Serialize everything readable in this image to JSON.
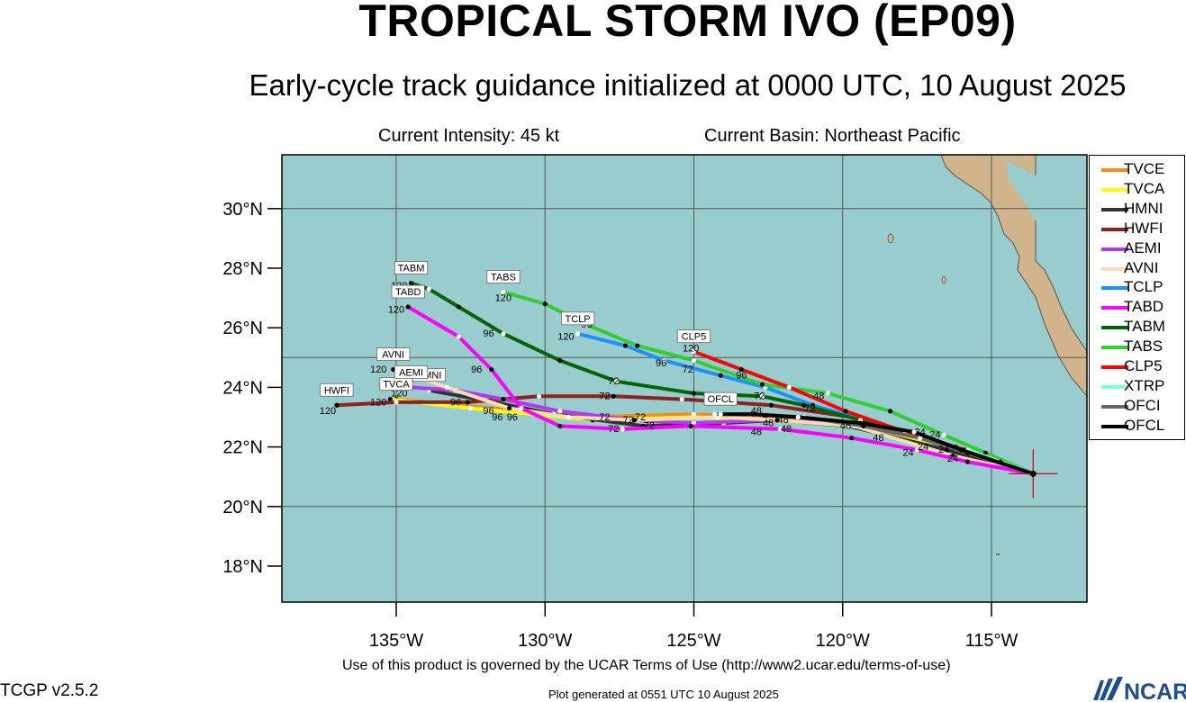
{
  "title": "TROPICAL STORM IVO (EP09)",
  "subtitle": "Early-cycle track guidance initialized at 0000 UTC, 10 August 2025",
  "intensity": "Current Intensity: 45 kt",
  "basin": "Current Basin: Northeast Pacific",
  "footer": {
    "terms": "Use of this product is governed by the UCAR Terms of Use (http://www2.ucar.edu/terms-of-use)",
    "version": "TCGP v2.5.2",
    "generated": "Plot generated at 0551 UTC   10 August 2025",
    "logo": "NCAR"
  },
  "colors": {
    "ocean": "#99cccc",
    "land": "#d2b48c"
  },
  "map": {
    "lat_ticks": [
      "18°N",
      "20°N",
      "22°N",
      "24°N",
      "26°N",
      "28°N",
      "30°N"
    ],
    "lon_ticks": [
      "135°W",
      "130°W",
      "125°W",
      "120°W",
      "115°W"
    ]
  },
  "storm_position": {
    "lon": -113.6,
    "lat": 21.1
  },
  "legend": [
    {
      "name": "TVCE",
      "color": "#f28c1c"
    },
    {
      "name": "TVCA",
      "color": "#ffff00"
    },
    {
      "name": "HMNI",
      "color": "#333333"
    },
    {
      "name": "HWFI",
      "color": "#8b2323"
    },
    {
      "name": "AEMI",
      "color": "#b23aee"
    },
    {
      "name": "AVNI",
      "color": "#f5deb3"
    },
    {
      "name": "TCLP",
      "color": "#1e90ff"
    },
    {
      "name": "TABD",
      "color": "#ff00ff"
    },
    {
      "name": "TABM",
      "color": "#006400"
    },
    {
      "name": "TABS",
      "color": "#32cd32"
    },
    {
      "name": "CLP5",
      "color": "#ff0000"
    },
    {
      "name": "XTRP",
      "color": "#7fffd4"
    },
    {
      "name": "OFCI",
      "color": "#666666"
    },
    {
      "name": "OFCL",
      "color": "#000000"
    }
  ],
  "tracks": [
    {
      "name": "TVCE",
      "color": "#f28c1c",
      "points": [
        [
          -113.6,
          21.1
        ],
        [
          -116.3,
          22.0
        ],
        [
          -119.6,
          22.8
        ],
        [
          -122.6,
          23.0
        ],
        [
          -125.0,
          23.1
        ],
        [
          -128.5,
          23.0
        ],
        [
          -132.9,
          23.4
        ],
        [
          -135.0,
          23.6
        ]
      ],
      "end_label": "TVCA"
    },
    {
      "name": "TVCA",
      "color": "#ffff00",
      "points": [
        [
          -113.6,
          21.1
        ],
        [
          -116.3,
          22.0
        ],
        [
          -119.5,
          22.7
        ],
        [
          -122.5,
          22.9
        ],
        [
          -125.0,
          23.0
        ],
        [
          -128.4,
          22.9
        ],
        [
          -132.5,
          23.3
        ],
        [
          -135.2,
          23.6
        ]
      ],
      "end_label": ""
    },
    {
      "name": "HMNI",
      "color": "#333333",
      "points": [
        [
          -113.6,
          21.1
        ],
        [
          -116.5,
          21.9
        ],
        [
          -119.8,
          22.7
        ],
        [
          -122.2,
          22.9
        ],
        [
          -124.0,
          22.8
        ],
        [
          -126.7,
          22.7
        ],
        [
          -129.7,
          23.1
        ],
        [
          -131.7,
          23.5
        ],
        [
          -133.9,
          23.9
        ]
      ],
      "end_label": "HMNI"
    },
    {
      "name": "HWFI",
      "color": "#8b2323",
      "points": [
        [
          -113.6,
          21.1
        ],
        [
          -116.7,
          22.1
        ],
        [
          -119.7,
          23.0
        ],
        [
          -122.4,
          23.4
        ],
        [
          -125.4,
          23.6
        ],
        [
          -127.7,
          23.7
        ],
        [
          -130.2,
          23.7
        ],
        [
          -132.6,
          23.5
        ],
        [
          -135.0,
          23.5
        ],
        [
          -137.0,
          23.4
        ]
      ],
      "end_label": "HWFI"
    },
    {
      "name": "AEMI",
      "color": "#b23aee",
      "points": [
        [
          -113.6,
          21.1
        ],
        [
          -116.9,
          22.2
        ],
        [
          -119.9,
          22.8
        ],
        [
          -122.5,
          22.9
        ],
        [
          -125.0,
          22.8
        ],
        [
          -127.0,
          22.9
        ],
        [
          -129.5,
          23.2
        ],
        [
          -131.4,
          23.6
        ],
        [
          -133.0,
          23.9
        ],
        [
          -134.5,
          24.0
        ]
      ],
      "end_label": "AEMI"
    },
    {
      "name": "AVNI",
      "color": "#f5deb3",
      "points": [
        [
          -113.6,
          21.1
        ],
        [
          -116.3,
          21.7
        ],
        [
          -119.6,
          22.7
        ],
        [
          -122.2,
          22.9
        ],
        [
          -124.2,
          23.0
        ],
        [
          -127.0,
          22.9
        ],
        [
          -129.2,
          23.0
        ],
        [
          -131.2,
          23.3
        ],
        [
          -133.3,
          24.0
        ],
        [
          -135.1,
          24.6
        ]
      ],
      "end_label": "AVNI"
    },
    {
      "name": "TCLP",
      "color": "#1e90ff",
      "points": [
        [
          -113.6,
          21.1
        ],
        [
          -116.2,
          22.0
        ],
        [
          -119.3,
          22.9
        ],
        [
          -121.0,
          23.4
        ],
        [
          -122.6,
          24.0
        ],
        [
          -124.1,
          24.4
        ],
        [
          -126.0,
          24.9
        ],
        [
          -127.3,
          25.4
        ],
        [
          -128.9,
          25.8
        ]
      ],
      "end_label": "TCLP"
    },
    {
      "name": "TABD",
      "color": "#ff00ff",
      "points": [
        [
          -113.6,
          21.1
        ],
        [
          -115.8,
          21.5
        ],
        [
          -117.5,
          21.9
        ],
        [
          -119.7,
          22.3
        ],
        [
          -122.1,
          22.6
        ],
        [
          -125.1,
          22.7
        ],
        [
          -127.4,
          22.6
        ],
        [
          -129.5,
          22.7
        ],
        [
          -130.8,
          23.3
        ],
        [
          -131.8,
          24.6
        ],
        [
          -132.9,
          25.7
        ],
        [
          -134.6,
          26.7
        ]
      ],
      "end_label": "TABD"
    },
    {
      "name": "TABM",
      "color": "#006400",
      "points": [
        [
          -113.6,
          21.1
        ],
        [
          -116.3,
          22.0
        ],
        [
          -119.4,
          22.9
        ],
        [
          -121.3,
          23.4
        ],
        [
          -122.7,
          23.7
        ],
        [
          -125.0,
          23.8
        ],
        [
          -127.6,
          24.2
        ],
        [
          -129.5,
          24.9
        ],
        [
          -131.4,
          25.8
        ],
        [
          -132.9,
          26.7
        ],
        [
          -133.9,
          27.3
        ],
        [
          -134.5,
          27.5
        ]
      ],
      "end_label": "TABM"
    },
    {
      "name": "TABS",
      "color": "#32cd32",
      "points": [
        [
          -113.6,
          21.1
        ],
        [
          -115.2,
          21.8
        ],
        [
          -116.6,
          22.4
        ],
        [
          -118.4,
          23.2
        ],
        [
          -120.5,
          23.8
        ],
        [
          -122.7,
          24.1
        ],
        [
          -125.0,
          24.9
        ],
        [
          -126.9,
          25.4
        ],
        [
          -128.6,
          26.1
        ],
        [
          -130.0,
          26.8
        ],
        [
          -131.4,
          27.2
        ]
      ],
      "end_label": "TABS"
    },
    {
      "name": "CLP5",
      "color": "#ff0000",
      "points": [
        [
          -113.6,
          21.1
        ],
        [
          -115.9,
          21.9
        ],
        [
          -117.9,
          22.5
        ],
        [
          -119.9,
          23.2
        ],
        [
          -121.8,
          24.0
        ],
        [
          -123.4,
          24.6
        ],
        [
          -125.0,
          25.2
        ]
      ],
      "end_label": "CLP5"
    },
    {
      "name": "XTRP",
      "color": "#7fffd4",
      "points": [
        [
          -113.6,
          21.1
        ],
        [
          -114.7,
          21.5
        ],
        [
          -115.8,
          21.9
        ]
      ],
      "end_label": ""
    },
    {
      "name": "OFCI",
      "color": "#666666",
      "points": [
        [
          -113.6,
          21.1
        ],
        [
          -115.8,
          21.8
        ],
        [
          -117.4,
          22.3
        ],
        [
          -119.3,
          22.7
        ],
        [
          -121.3,
          23.0
        ],
        [
          -123.0,
          23.1
        ],
        [
          -124.3,
          23.1
        ]
      ],
      "end_label": ""
    },
    {
      "name": "OFCL",
      "color": "#000000",
      "points": [
        [
          -113.6,
          21.1
        ],
        [
          -116.0,
          21.9
        ],
        [
          -117.6,
          22.5
        ],
        [
          -119.4,
          22.8
        ],
        [
          -121.5,
          23.0
        ],
        [
          -123.0,
          23.1
        ],
        [
          -124.1,
          23.1
        ]
      ],
      "end_label": "OFCL"
    }
  ],
  "hour_labels": [
    {
      "text": "120",
      "lon": -134.9,
      "lat": 27.3
    },
    {
      "text": "120",
      "lon": -135.0,
      "lat": 26.5
    },
    {
      "text": "120",
      "lon": -131.4,
      "lat": 26.9
    },
    {
      "text": "120",
      "lon": -129.3,
      "lat": 25.6
    },
    {
      "text": "120",
      "lon": -125.1,
      "lat": 25.2
    },
    {
      "text": "120",
      "lon": -135.6,
      "lat": 24.5
    },
    {
      "text": "120",
      "lon": -134.9,
      "lat": 24.0
    },
    {
      "text": "120",
      "lon": -134.9,
      "lat": 23.7
    },
    {
      "text": "120",
      "lon": -135.6,
      "lat": 23.4
    },
    {
      "text": "120",
      "lon": -137.3,
      "lat": 23.1
    },
    {
      "text": "96",
      "lon": -131.9,
      "lat": 25.7
    },
    {
      "text": "96",
      "lon": -132.3,
      "lat": 24.5
    },
    {
      "text": "96",
      "lon": -128.6,
      "lat": 26.0
    },
    {
      "text": "96",
      "lon": -126.1,
      "lat": 24.7
    },
    {
      "text": "96",
      "lon": -123.4,
      "lat": 24.3
    },
    {
      "text": "96",
      "lon": -133.0,
      "lat": 23.4
    },
    {
      "text": "96",
      "lon": -131.9,
      "lat": 23.1
    },
    {
      "text": "96",
      "lon": -131.1,
      "lat": 22.9
    },
    {
      "text": "96",
      "lon": -131.6,
      "lat": 22.9
    },
    {
      "text": "72",
      "lon": -127.7,
      "lat": 24.1
    },
    {
      "text": "72",
      "lon": -128.0,
      "lat": 23.6
    },
    {
      "text": "72",
      "lon": -128.0,
      "lat": 22.9
    },
    {
      "text": "72",
      "lon": -127.2,
      "lat": 22.8
    },
    {
      "text": "72",
      "lon": -126.8,
      "lat": 22.9
    },
    {
      "text": "72",
      "lon": -127.7,
      "lat": 22.5
    },
    {
      "text": "72",
      "lon": -126.5,
      "lat": 22.6
    },
    {
      "text": "72",
      "lon": -125.2,
      "lat": 24.5
    },
    {
      "text": "72",
      "lon": -122.8,
      "lat": 23.6
    },
    {
      "text": "72",
      "lon": -121.1,
      "lat": 23.2
    },
    {
      "text": "48",
      "lon": -122.9,
      "lat": 23.1
    },
    {
      "text": "48",
      "lon": -122.5,
      "lat": 22.7
    },
    {
      "text": "48",
      "lon": -122.0,
      "lat": 22.8
    },
    {
      "text": "48",
      "lon": -122.9,
      "lat": 22.4
    },
    {
      "text": "48",
      "lon": -121.9,
      "lat": 22.5
    },
    {
      "text": "48",
      "lon": -120.8,
      "lat": 23.6
    },
    {
      "text": "48",
      "lon": -119.9,
      "lat": 22.6
    },
    {
      "text": "48",
      "lon": -118.8,
      "lat": 22.2
    },
    {
      "text": "24",
      "lon": -117.8,
      "lat": 21.7
    },
    {
      "text": "24",
      "lon": -117.3,
      "lat": 21.9
    },
    {
      "text": "24",
      "lon": -116.6,
      "lat": 21.8
    },
    {
      "text": "24",
      "lon": -116.3,
      "lat": 21.5
    },
    {
      "text": "24",
      "lon": -116.9,
      "lat": 22.3
    },
    {
      "text": "24",
      "lon": -117.4,
      "lat": 22.4
    }
  ]
}
